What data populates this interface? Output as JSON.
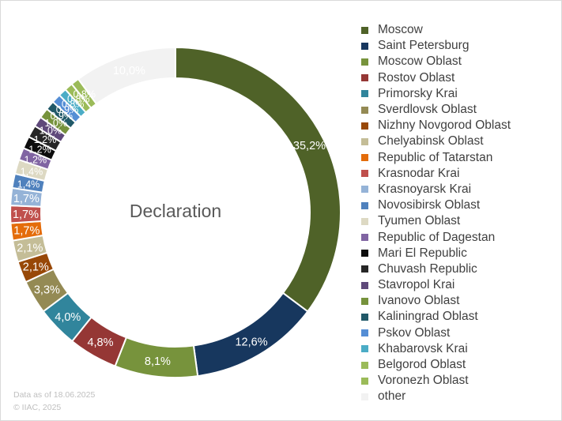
{
  "chart_data": {
    "type": "donut",
    "center_label": "Declaration",
    "legend_position": "right",
    "categories": [
      "Moscow",
      "Saint Petersburg",
      "Moscow Oblast",
      "Rostov Oblast",
      "Primorsky Krai",
      "Sverdlovsk Oblast",
      "Nizhny Novgorod Oblast",
      "Chelyabinsk Oblast",
      "Republic of Tatarstan",
      "Krasnodar Krai",
      "Krasnoyarsk Krai",
      "Novosibirsk Oblast",
      "Tyumen Oblast",
      "Republic of Dagestan",
      "Mari El Republic",
      "Chuvash Republic",
      "Stavropol Krai",
      "Ivanovo Oblast",
      "Kaliningrad Oblast",
      "Pskov Oblast",
      "Khabarovsk Krai",
      "Belgorod Oblast",
      "Voronezh Oblast",
      "other"
    ],
    "values": [
      35.2,
      12.6,
      8.1,
      4.8,
      4.0,
      3.3,
      2.1,
      2.1,
      1.7,
      1.7,
      1.7,
      1.4,
      1.4,
      1.2,
      1.2,
      1.2,
      1.0,
      1.0,
      0.9,
      0.9,
      0.8,
      0.8,
      0.8,
      10.0
    ],
    "labels": [
      "35,2%",
      "12,6%",
      "8,1%",
      "4,8%",
      "4,0%",
      "3,3%",
      "2,1%",
      "2,1%",
      "1,7%",
      "1,7%",
      "1,7%",
      "1,4%",
      "1,4%",
      "1,2%",
      "1,2%",
      "1,2%",
      "1,0%",
      "1,0%",
      "0,9%",
      "0,9%",
      "0,8%",
      "0,8%",
      "0,8%",
      "10,0%"
    ],
    "colors": [
      "#4f6228",
      "#17375e",
      "#77933c",
      "#953735",
      "#31859c",
      "#948a54",
      "#984807",
      "#c4bd97",
      "#e46c0a",
      "#c0504d",
      "#95b3d7",
      "#4f81bd",
      "#ddd9c3",
      "#8064a2",
      "#0d0d0d",
      "#262626",
      "#5f497a",
      "#76923c",
      "#215968",
      "#558ed5",
      "#4bacc6",
      "#9bbb59",
      "#9bbb59",
      "#f2f2f2"
    ],
    "label_colors": [
      "#ffffff",
      "#ffffff",
      "#ffffff",
      "#ffffff",
      "#ffffff",
      "#ffffff",
      "#ffffff",
      "#ffffff",
      "#ffffff",
      "#ffffff",
      "#ffffff",
      "#ffffff",
      "#ffffff",
      "#ffffff",
      "#ffffff",
      "#ffffff",
      "#ffffff",
      "#ffffff",
      "#ffffff",
      "#ffffff",
      "#ffffff",
      "#ffffff",
      "#ffffff",
      "#ffffff"
    ]
  },
  "footer": {
    "line1": "Data as of 18.06.2025",
    "line2": "© IIAC, 2025"
  }
}
